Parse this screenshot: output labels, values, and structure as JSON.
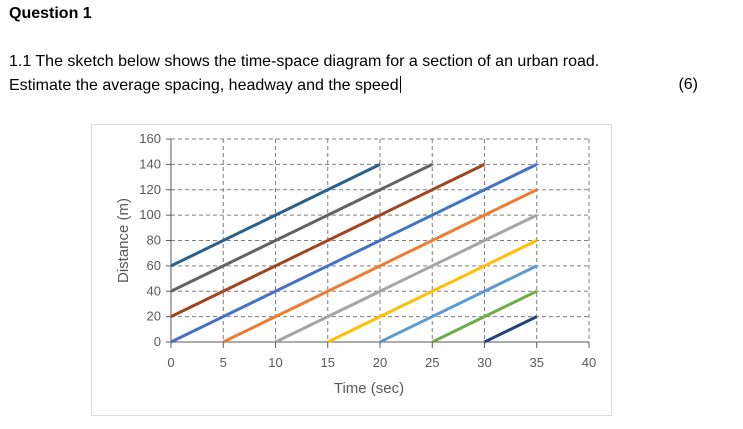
{
  "heading": "Question 1",
  "question": {
    "line1": "1.1 The sketch below shows the time-space diagram for a section of an urban road.",
    "line2": "Estimate the average spacing, headway and the speed",
    "marks": "(6)"
  },
  "chart_data": {
    "type": "line",
    "title": "",
    "xlabel": "Time (sec)",
    "ylabel": "Distance (m)",
    "xlim": [
      0,
      40
    ],
    "ylim": [
      0,
      160
    ],
    "xticks": [
      "0",
      "5",
      "10",
      "15",
      "20",
      "25",
      "30",
      "35",
      "40"
    ],
    "yticks": [
      "0",
      "20",
      "40",
      "60",
      "80",
      "100",
      "120",
      "140",
      "160"
    ],
    "grid": "dashed gridlines at every tick (horizontal and vertical)",
    "legend": "none",
    "series": [
      {
        "color": "#2E5F8A",
        "x": [
          0,
          20
        ],
        "y": [
          60,
          140
        ]
      },
      {
        "color": "#636363",
        "x": [
          0,
          25
        ],
        "y": [
          40,
          140
        ]
      },
      {
        "color": "#A0461E",
        "x": [
          0,
          30
        ],
        "y": [
          20,
          140
        ]
      },
      {
        "color": "#4472C4",
        "x": [
          0,
          35
        ],
        "y": [
          0,
          140
        ]
      },
      {
        "color": "#ED7D31",
        "x": [
          5,
          35
        ],
        "y": [
          0,
          120
        ]
      },
      {
        "color": "#A5A5A5",
        "x": [
          10,
          35
        ],
        "y": [
          0,
          100
        ]
      },
      {
        "color": "#FFC000",
        "x": [
          15,
          35
        ],
        "y": [
          0,
          80
        ]
      },
      {
        "color": "#5B9BD5",
        "x": [
          20,
          35
        ],
        "y": [
          0,
          60
        ]
      },
      {
        "color": "#70AD47",
        "x": [
          25,
          35
        ],
        "y": [
          0,
          40
        ]
      },
      {
        "color": "#264478",
        "x": [
          30,
          35
        ],
        "y": [
          0,
          20
        ]
      }
    ]
  }
}
